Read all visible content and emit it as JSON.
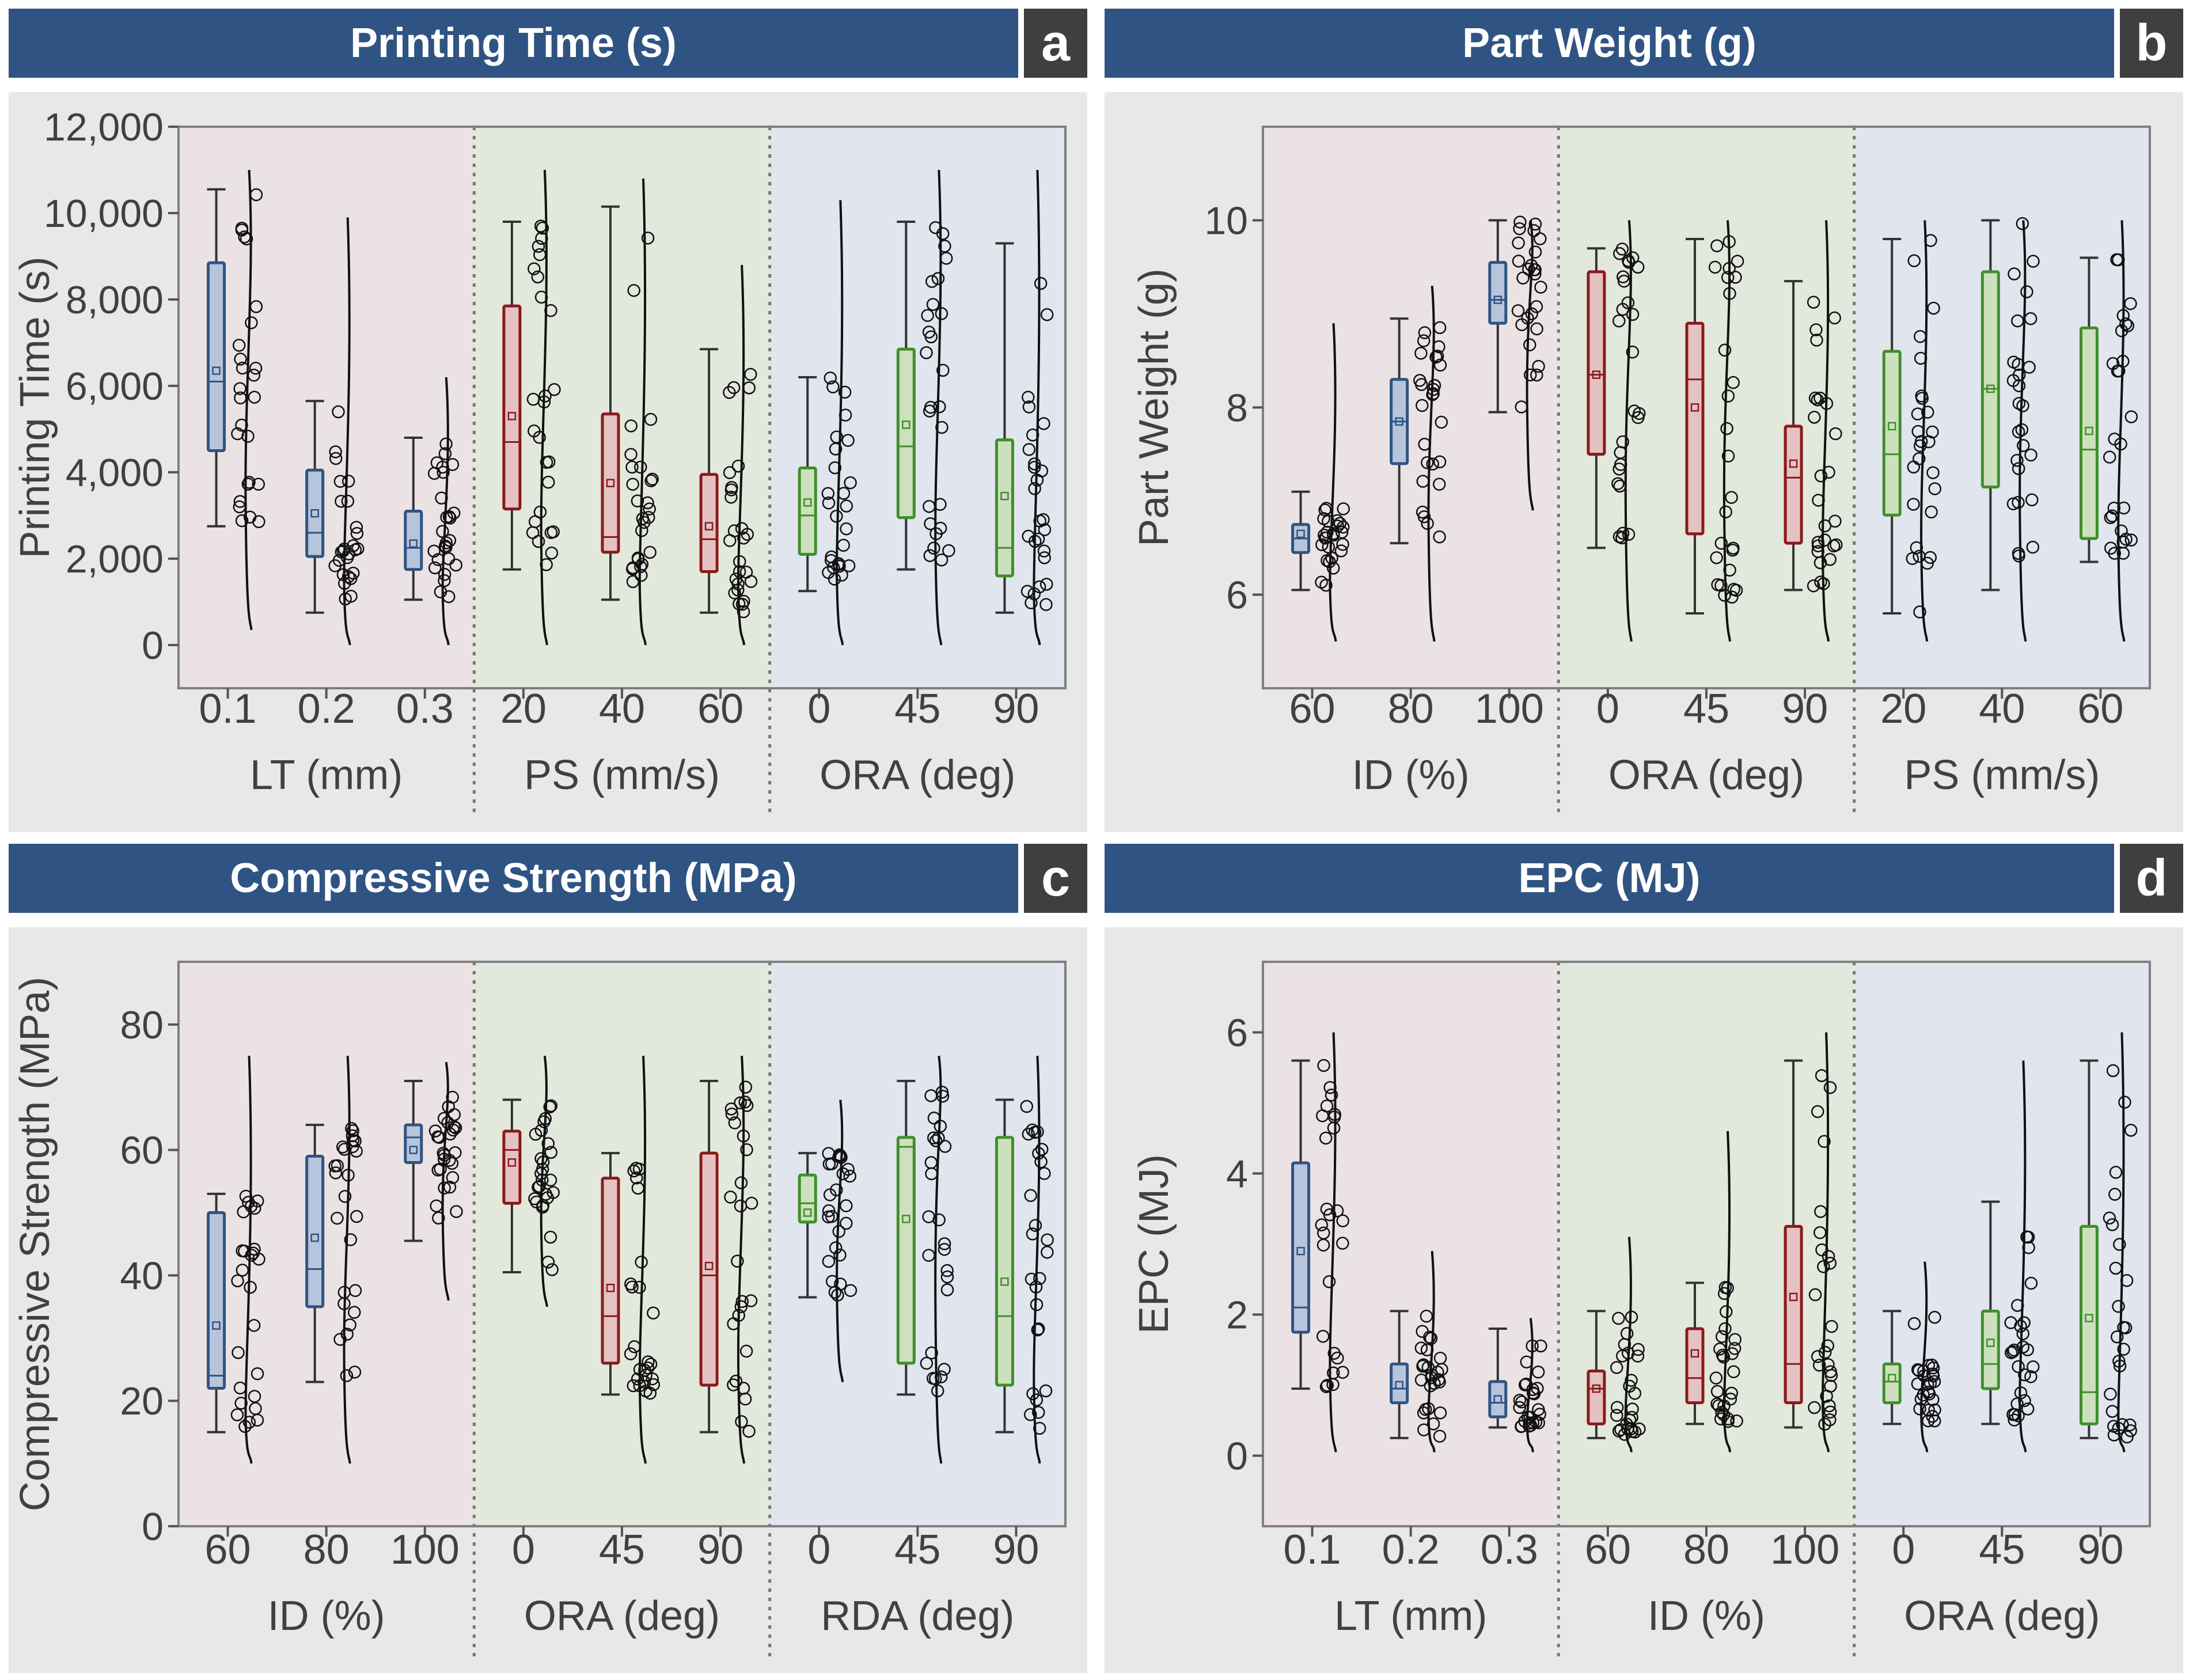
{
  "figure": {
    "colors": {
      "header_bg": "#2f5483",
      "badge_bg": "#3f3f3f",
      "panel_bg": "#e8e8e8",
      "group_bg": [
        "#ebe3e3",
        "#e3e8dc",
        "#e1e5ee"
      ],
      "box_fill": {
        "blue": "#b6c5dc",
        "red": "#e4c2c4",
        "green": "#cde0bd"
      },
      "box_stroke": {
        "blue": "#2f5483",
        "red": "#8b1a1a",
        "green": "#3f8f2a"
      }
    }
  },
  "chart_data": [
    {
      "type": "box",
      "panel": "a",
      "title": "Printing Time (s)",
      "ylabel": "Printing Time (s)",
      "ylim": [
        -1000,
        12000
      ],
      "yticks": [
        0,
        2000,
        4000,
        6000,
        8000,
        10000,
        12000
      ],
      "ytick_labels": [
        "0",
        "2,000",
        "4,000",
        "6,000",
        "8,000",
        "10,000",
        "12,000"
      ],
      "groups": [
        {
          "label": "LT (mm)",
          "color": "blue",
          "categories": [
            {
              "label": "0.1",
              "whisker_low": 2750,
              "q1": 4500,
              "median": 6100,
              "q3": 8850,
              "whisker_high": 10550,
              "mean": 6350,
              "dist_low": 350,
              "dist_high": 11000
            },
            {
              "label": "0.2",
              "whisker_low": 750,
              "q1": 2050,
              "median": 2600,
              "q3": 4050,
              "whisker_high": 5650,
              "mean": 3050,
              "dist_low": 0,
              "dist_high": 9900
            },
            {
              "label": "0.3",
              "whisker_low": 1050,
              "q1": 1750,
              "median": 2250,
              "q3": 3100,
              "whisker_high": 4800,
              "mean": 2350,
              "dist_low": 0,
              "dist_high": 6200
            }
          ]
        },
        {
          "label": "PS (mm/s)",
          "color": "red",
          "categories": [
            {
              "label": "20",
              "whisker_low": 1750,
              "q1": 3150,
              "median": 4700,
              "q3": 7850,
              "whisker_high": 9800,
              "mean": 5300,
              "dist_low": 0,
              "dist_high": 11000
            },
            {
              "label": "40",
              "whisker_low": 1050,
              "q1": 2150,
              "median": 2500,
              "q3": 5350,
              "whisker_high": 10150,
              "mean": 3750,
              "dist_low": 0,
              "dist_high": 10800
            },
            {
              "label": "60",
              "whisker_low": 750,
              "q1": 1700,
              "median": 2450,
              "q3": 3950,
              "whisker_high": 6850,
              "mean": 2750,
              "dist_low": 0,
              "dist_high": 8800
            }
          ]
        },
        {
          "label": "ORA (deg)",
          "color": "green",
          "categories": [
            {
              "label": "0",
              "whisker_low": 1250,
              "q1": 2100,
              "median": 3000,
              "q3": 4100,
              "whisker_high": 6200,
              "mean": 3300,
              "dist_low": 0,
              "dist_high": 10300
            },
            {
              "label": "45",
              "whisker_low": 1750,
              "q1": 2950,
              "median": 4600,
              "q3": 6850,
              "whisker_high": 9800,
              "mean": 5100,
              "dist_low": 0,
              "dist_high": 11000
            },
            {
              "label": "90",
              "whisker_low": 750,
              "q1": 1600,
              "median": 2250,
              "q3": 4750,
              "whisker_high": 9300,
              "mean": 3450,
              "dist_low": 0,
              "dist_high": 11000
            }
          ]
        }
      ]
    },
    {
      "type": "box",
      "panel": "b",
      "title": "Part Weight (g)",
      "ylabel": "Part Weight (g)",
      "ylim": [
        5,
        11
      ],
      "yticks": [
        6,
        8,
        10
      ],
      "ytick_labels": [
        "6",
        "8",
        "10"
      ],
      "groups": [
        {
          "label": "ID (%)",
          "color": "blue",
          "categories": [
            {
              "label": "60",
              "whisker_low": 6.05,
              "q1": 6.45,
              "median": 6.6,
              "q3": 6.75,
              "whisker_high": 7.1,
              "mean": 6.65,
              "dist_low": 5.5,
              "dist_high": 8.9
            },
            {
              "label": "80",
              "whisker_low": 6.55,
              "q1": 7.4,
              "median": 7.85,
              "q3": 8.3,
              "whisker_high": 8.95,
              "mean": 7.85,
              "dist_low": 5.5,
              "dist_high": 9.3
            },
            {
              "label": "100",
              "whisker_low": 7.95,
              "q1": 8.9,
              "median": 9.15,
              "q3": 9.55,
              "whisker_high": 10.0,
              "mean": 9.15,
              "dist_low": 6.9,
              "dist_high": 10.0
            }
          ]
        },
        {
          "label": "ORA (deg)",
          "color": "red",
          "categories": [
            {
              "label": "0",
              "whisker_low": 6.5,
              "q1": 7.5,
              "median": 8.35,
              "q3": 9.45,
              "whisker_high": 9.7,
              "mean": 8.35,
              "dist_low": 5.5,
              "dist_high": 10.0
            },
            {
              "label": "45",
              "whisker_low": 5.8,
              "q1": 6.65,
              "median": 8.3,
              "q3": 8.9,
              "whisker_high": 9.8,
              "mean": 8.0,
              "dist_low": 5.5,
              "dist_high": 10.0
            },
            {
              "label": "90",
              "whisker_low": 6.05,
              "q1": 6.55,
              "median": 7.25,
              "q3": 7.8,
              "whisker_high": 9.35,
              "mean": 7.4,
              "dist_low": 5.5,
              "dist_high": 10.0
            }
          ]
        },
        {
          "label": "PS (mm/s)",
          "color": "green",
          "categories": [
            {
              "label": "20",
              "whisker_low": 5.8,
              "q1": 6.85,
              "median": 7.5,
              "q3": 8.6,
              "whisker_high": 9.8,
              "mean": 7.8,
              "dist_low": 5.5,
              "dist_high": 10.0
            },
            {
              "label": "40",
              "whisker_low": 6.05,
              "q1": 7.15,
              "median": 8.2,
              "q3": 9.45,
              "whisker_high": 10.0,
              "mean": 8.2,
              "dist_low": 5.5,
              "dist_high": 10.0
            },
            {
              "label": "60",
              "whisker_low": 6.35,
              "q1": 6.6,
              "median": 7.55,
              "q3": 8.85,
              "whisker_high": 9.6,
              "mean": 7.75,
              "dist_low": 5.5,
              "dist_high": 10.0
            }
          ]
        }
      ]
    },
    {
      "type": "box",
      "panel": "c",
      "title": "Compressive Strength (MPa)",
      "ylabel": "Compressive Strength (MPa)",
      "ylim": [
        0,
        90
      ],
      "yticks": [
        0,
        20,
        40,
        60,
        80
      ],
      "ytick_labels": [
        "0",
        "20",
        "40",
        "60",
        "80"
      ],
      "groups": [
        {
          "label": "ID (%)",
          "color": "blue",
          "categories": [
            {
              "label": "60",
              "whisker_low": 15,
              "q1": 22,
              "median": 24,
              "q3": 50,
              "whisker_high": 53,
              "mean": 32,
              "dist_low": 10,
              "dist_high": 75
            },
            {
              "label": "80",
              "whisker_low": 23,
              "q1": 35,
              "median": 41,
              "q3": 59,
              "whisker_high": 64,
              "mean": 46,
              "dist_low": 10,
              "dist_high": 75
            },
            {
              "label": "100",
              "whisker_low": 45.5,
              "q1": 58,
              "median": 62,
              "q3": 64,
              "whisker_high": 71,
              "mean": 60,
              "dist_low": 36,
              "dist_high": 74
            }
          ]
        },
        {
          "label": "ORA (deg)",
          "color": "red",
          "categories": [
            {
              "label": "0",
              "whisker_low": 40.5,
              "q1": 51.5,
              "median": 60,
              "q3": 63,
              "whisker_high": 68,
              "mean": 58,
              "dist_low": 35,
              "dist_high": 75
            },
            {
              "label": "45",
              "whisker_low": 21,
              "q1": 26,
              "median": 33.5,
              "q3": 55.5,
              "whisker_high": 59.5,
              "mean": 38,
              "dist_low": 10,
              "dist_high": 75
            },
            {
              "label": "90",
              "whisker_low": 15,
              "q1": 22.5,
              "median": 40,
              "q3": 59.5,
              "whisker_high": 71,
              "mean": 41.5,
              "dist_low": 10,
              "dist_high": 75
            }
          ]
        },
        {
          "label": "RDA (deg)",
          "color": "green",
          "categories": [
            {
              "label": "0",
              "whisker_low": 36.5,
              "q1": 48.5,
              "median": 51.5,
              "q3": 56,
              "whisker_high": 59.5,
              "mean": 50,
              "dist_low": 23,
              "dist_high": 68
            },
            {
              "label": "45",
              "whisker_low": 21,
              "q1": 26,
              "median": 60.5,
              "q3": 62,
              "whisker_high": 71,
              "mean": 49,
              "dist_low": 10,
              "dist_high": 75
            },
            {
              "label": "90",
              "whisker_low": 15,
              "q1": 22.5,
              "median": 33.5,
              "q3": 62,
              "whisker_high": 68,
              "mean": 39,
              "dist_low": 10,
              "dist_high": 75
            }
          ]
        }
      ]
    },
    {
      "type": "box",
      "panel": "d",
      "title": "EPC (MJ)",
      "ylabel": "EPC (MJ)",
      "ylim": [
        -1,
        7
      ],
      "yticks": [
        0,
        2,
        4,
        6
      ],
      "ytick_labels": [
        "0",
        "2",
        "4",
        "6"
      ],
      "groups": [
        {
          "label": "LT (mm)",
          "color": "blue",
          "categories": [
            {
              "label": "0.1",
              "whisker_low": 0.95,
              "q1": 1.75,
              "median": 2.1,
              "q3": 4.15,
              "whisker_high": 5.6,
              "mean": 2.9,
              "dist_low": 0.05,
              "dist_high": 6.0
            },
            {
              "label": "0.2",
              "whisker_low": 0.25,
              "q1": 0.75,
              "median": 0.95,
              "q3": 1.3,
              "whisker_high": 2.05,
              "mean": 1.0,
              "dist_low": 0.05,
              "dist_high": 2.9
            },
            {
              "label": "0.3",
              "whisker_low": 0.4,
              "q1": 0.55,
              "median": 0.75,
              "q3": 1.05,
              "whisker_high": 1.8,
              "mean": 0.8,
              "dist_low": 0.05,
              "dist_high": 1.95
            }
          ]
        },
        {
          "label": "ID (%)",
          "color": "red",
          "categories": [
            {
              "label": "60",
              "whisker_low": 0.25,
              "q1": 0.45,
              "median": 0.95,
              "q3": 1.2,
              "whisker_high": 2.05,
              "mean": 0.95,
              "dist_low": 0.05,
              "dist_high": 3.1
            },
            {
              "label": "80",
              "whisker_low": 0.45,
              "q1": 0.75,
              "median": 1.1,
              "q3": 1.8,
              "whisker_high": 2.45,
              "mean": 1.45,
              "dist_low": 0.05,
              "dist_high": 4.6
            },
            {
              "label": "100",
              "whisker_low": 0.4,
              "q1": 0.75,
              "median": 1.3,
              "q3": 3.25,
              "whisker_high": 5.6,
              "mean": 2.25,
              "dist_low": 0.05,
              "dist_high": 6.0
            }
          ]
        },
        {
          "label": "ORA (deg)",
          "color": "green",
          "categories": [
            {
              "label": "0",
              "whisker_low": 0.45,
              "q1": 0.75,
              "median": 1.05,
              "q3": 1.3,
              "whisker_high": 2.05,
              "mean": 1.1,
              "dist_low": 0.05,
              "dist_high": 2.75
            },
            {
              "label": "45",
              "whisker_low": 0.45,
              "q1": 0.95,
              "median": 1.3,
              "q3": 2.05,
              "whisker_high": 3.6,
              "mean": 1.6,
              "dist_low": 0.05,
              "dist_high": 5.6
            },
            {
              "label": "90",
              "whisker_low": 0.25,
              "q1": 0.45,
              "median": 0.9,
              "q3": 3.25,
              "whisker_high": 5.6,
              "mean": 1.95,
              "dist_low": 0.05,
              "dist_high": 6.0
            }
          ]
        }
      ]
    }
  ]
}
